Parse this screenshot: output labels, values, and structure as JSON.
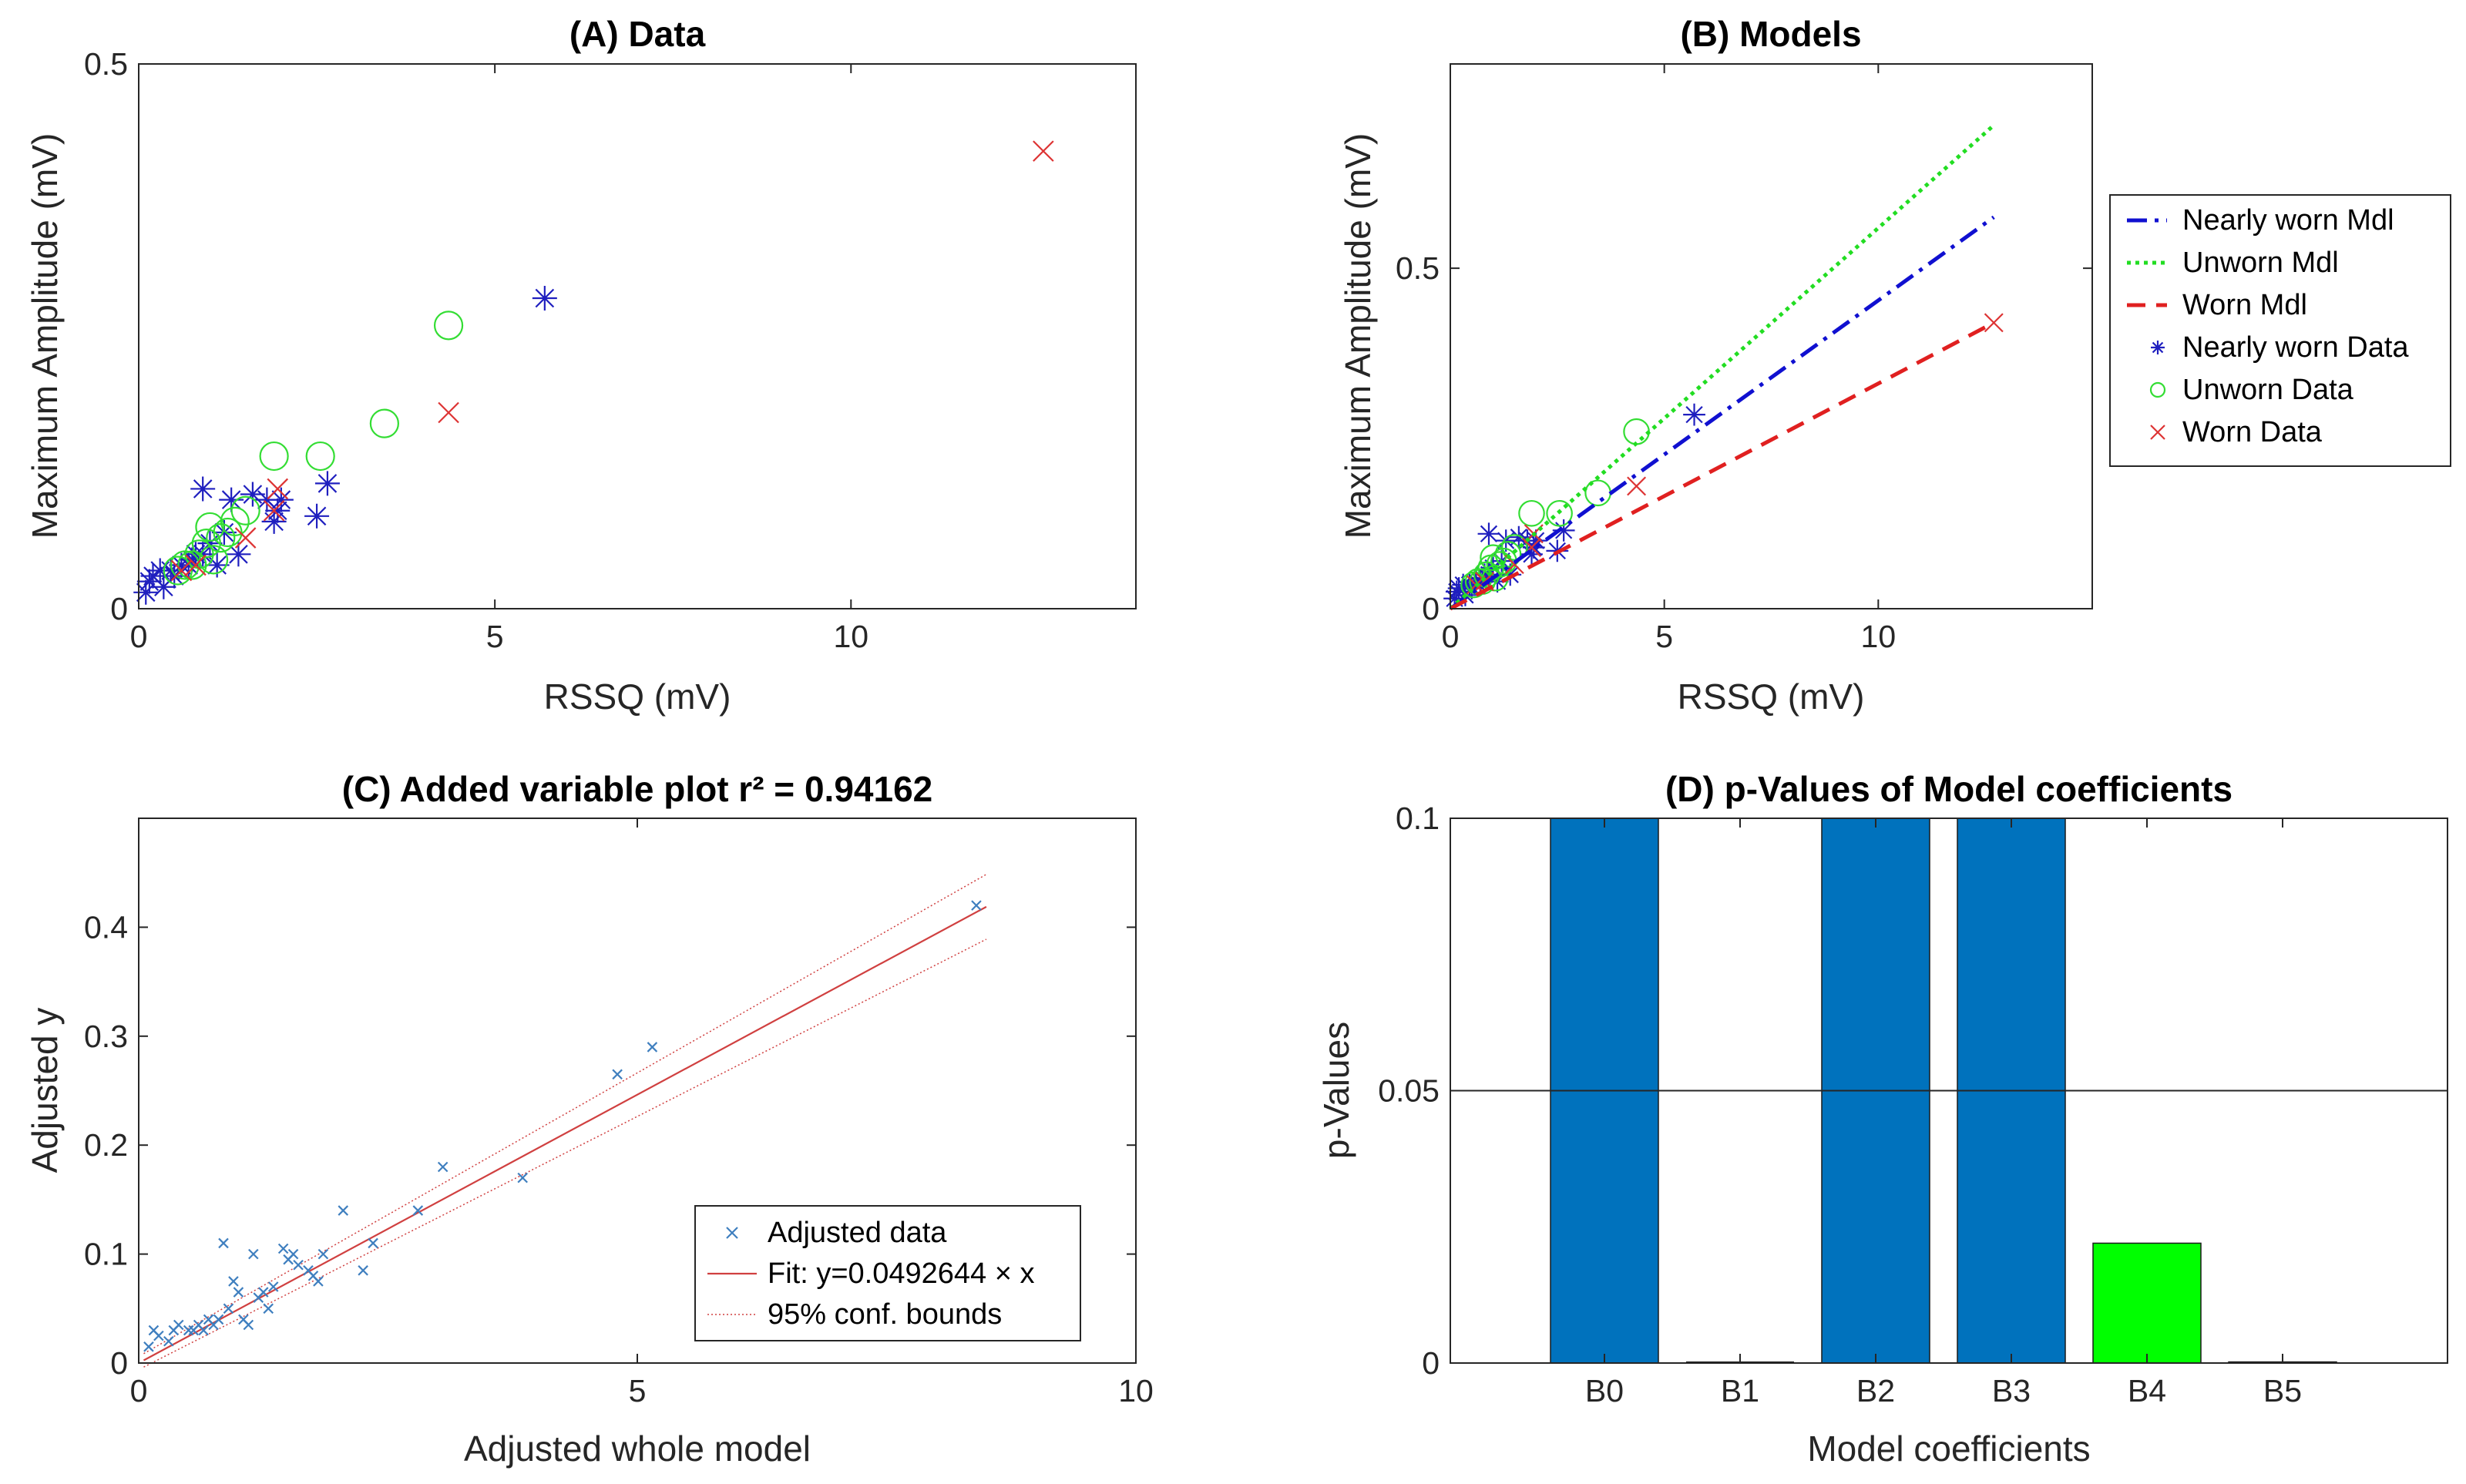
{
  "colors": {
    "nearly_worn": "#1f1fbf",
    "unworn": "#33dd33",
    "worn": "#dd3333",
    "adjusted": "#3f7fbf",
    "fit": "#d04040",
    "bar_blue": "#0072bd",
    "bar_green": "#00ff00",
    "axis": "#262626"
  },
  "chart_data": [
    {
      "id": "A",
      "type": "scatter",
      "title": "(A) Data",
      "xlabel": "RSSQ (mV)",
      "ylabel": "Maximum Amplitude (mV)",
      "xlim": [
        0,
        14
      ],
      "ylim": [
        0,
        0.5
      ],
      "xticks": [
        0,
        5,
        10
      ],
      "yticks": [
        0,
        0.5
      ],
      "grid": false,
      "series": [
        {
          "key": "nearly",
          "marker": "asterisk",
          "points": [
            [
              0.1,
              0.015
            ],
            [
              0.15,
              0.025
            ],
            [
              0.2,
              0.03
            ],
            [
              0.3,
              0.035
            ],
            [
              0.35,
              0.02
            ],
            [
              0.45,
              0.035
            ],
            [
              0.5,
              0.03
            ],
            [
              0.6,
              0.04
            ],
            [
              0.7,
              0.04
            ],
            [
              0.75,
              0.045
            ],
            [
              0.8,
              0.05
            ],
            [
              0.9,
              0.05
            ],
            [
              0.9,
              0.11
            ],
            [
              1.0,
              0.06
            ],
            [
              1.1,
              0.04
            ],
            [
              1.2,
              0.07
            ],
            [
              1.3,
              0.1
            ],
            [
              1.4,
              0.05
            ],
            [
              1.6,
              0.105
            ],
            [
              1.8,
              0.1
            ],
            [
              1.9,
              0.08
            ],
            [
              1.95,
              0.09
            ],
            [
              2.0,
              0.1
            ],
            [
              2.5,
              0.085
            ],
            [
              2.65,
              0.115
            ],
            [
              5.7,
              0.285
            ]
          ]
        },
        {
          "key": "unworn",
          "marker": "circle",
          "points": [
            [
              0.55,
              0.035
            ],
            [
              0.65,
              0.04
            ],
            [
              0.75,
              0.04
            ],
            [
              0.85,
              0.05
            ],
            [
              0.95,
              0.06
            ],
            [
              1.0,
              0.075
            ],
            [
              1.05,
              0.045
            ],
            [
              1.15,
              0.065
            ],
            [
              1.25,
              0.07
            ],
            [
              1.35,
              0.08
            ],
            [
              1.5,
              0.09
            ],
            [
              1.9,
              0.14
            ],
            [
              2.55,
              0.14
            ],
            [
              3.45,
              0.17
            ],
            [
              4.35,
              0.26
            ]
          ]
        },
        {
          "key": "worn",
          "marker": "x",
          "points": [
            [
              0.6,
              0.035
            ],
            [
              0.8,
              0.04
            ],
            [
              1.5,
              0.065
            ],
            [
              1.9,
              0.09
            ],
            [
              1.95,
              0.11
            ],
            [
              4.35,
              0.18
            ],
            [
              12.7,
              0.42
            ]
          ]
        }
      ]
    },
    {
      "id": "B",
      "type": "line",
      "title": "(B) Models",
      "xlabel": "RSSQ (mV)",
      "ylabel": "Maximum Amplitude (mV)",
      "xlim": [
        0,
        15
      ],
      "ylim": [
        0,
        0.8
      ],
      "xticks": [
        0,
        5,
        10
      ],
      "yticks": [
        0,
        0.5
      ],
      "grid": false,
      "legend_position": "outside-right",
      "series": [
        {
          "key": "nearly_mdl",
          "name": "Nearly worn Mdl",
          "style": "dashdot",
          "x": [
            0,
            12.7
          ],
          "y": [
            0,
            0.575
          ]
        },
        {
          "key": "unworn_mdl",
          "name": "Unworn Mdl",
          "style": "dotted",
          "x": [
            0,
            12.7
          ],
          "y": [
            0,
            0.71
          ]
        },
        {
          "key": "worn_mdl",
          "name": "Worn Mdl",
          "style": "dashed",
          "x": [
            0,
            12.7
          ],
          "y": [
            0,
            0.42
          ]
        },
        {
          "key": "nearly_data",
          "name": "Nearly worn Data",
          "marker": "asterisk",
          "ref": "A.nearly"
        },
        {
          "key": "unworn_data",
          "name": "Unworn Data",
          "marker": "circle",
          "ref": "A.unworn"
        },
        {
          "key": "worn_data",
          "name": "Worn Data",
          "marker": "x",
          "ref": "A.worn"
        }
      ]
    },
    {
      "id": "C",
      "type": "scatter",
      "title": "(C) Added variable plot r² = 0.94162",
      "xlabel": "Adjusted whole model",
      "ylabel": "Adjusted y",
      "xlim": [
        0,
        10
      ],
      "ylim": [
        0,
        0.5
      ],
      "xticks": [
        0,
        5,
        10
      ],
      "yticks": [
        0,
        0.1,
        0.2,
        0.3,
        0.4
      ],
      "grid": false,
      "legend_position": "bottom-right",
      "fit": {
        "slope": 0.0492644,
        "x_range": [
          0.05,
          8.5
        ]
      },
      "series": [
        {
          "key": "adjusted",
          "name": "Adjusted data",
          "marker": "x",
          "points": [
            [
              0.1,
              0.015
            ],
            [
              0.15,
              0.03
            ],
            [
              0.2,
              0.025
            ],
            [
              0.3,
              0.02
            ],
            [
              0.35,
              0.03
            ],
            [
              0.4,
              0.035
            ],
            [
              0.5,
              0.03
            ],
            [
              0.55,
              0.03
            ],
            [
              0.6,
              0.035
            ],
            [
              0.65,
              0.03
            ],
            [
              0.7,
              0.04
            ],
            [
              0.75,
              0.035
            ],
            [
              0.8,
              0.04
            ],
            [
              0.85,
              0.11
            ],
            [
              0.9,
              0.05
            ],
            [
              0.95,
              0.075
            ],
            [
              1.0,
              0.065
            ],
            [
              1.05,
              0.04
            ],
            [
              1.1,
              0.035
            ],
            [
              1.15,
              0.1
            ],
            [
              1.2,
              0.06
            ],
            [
              1.25,
              0.065
            ],
            [
              1.3,
              0.05
            ],
            [
              1.35,
              0.07
            ],
            [
              1.45,
              0.105
            ],
            [
              1.5,
              0.095
            ],
            [
              1.55,
              0.1
            ],
            [
              1.6,
              0.09
            ],
            [
              1.7,
              0.085
            ],
            [
              1.75,
              0.08
            ],
            [
              1.8,
              0.075
            ],
            [
              1.85,
              0.1
            ],
            [
              2.05,
              0.14
            ],
            [
              2.25,
              0.085
            ],
            [
              2.35,
              0.11
            ],
            [
              2.8,
              0.14
            ],
            [
              3.05,
              0.18
            ],
            [
              3.85,
              0.17
            ],
            [
              4.8,
              0.265
            ],
            [
              5.15,
              0.29
            ],
            [
              8.4,
              0.42
            ]
          ]
        },
        {
          "key": "fit_line",
          "name": "Fit: y=0.0492644 × x"
        },
        {
          "key": "bounds",
          "name": "95% conf. bounds"
        }
      ]
    },
    {
      "id": "D",
      "type": "bar",
      "title": "(D) p-Values of Model coefficients",
      "xlabel": "Model coefficients",
      "ylabel": "p-Values",
      "ylim": [
        0,
        0.1
      ],
      "yticks": [
        0,
        0.05,
        0.1
      ],
      "reference_line": 0.05,
      "categories": [
        "B0",
        "B1",
        "B2",
        "B3",
        "B4",
        "B5"
      ],
      "values": [
        0.1,
        0,
        0.1,
        0.1,
        0.022,
        0.0002
      ],
      "bar_colors": [
        "bar_blue",
        "bar_blue",
        "bar_blue",
        "bar_blue",
        "bar_green",
        "bar_blue"
      ],
      "grid": false
    }
  ]
}
